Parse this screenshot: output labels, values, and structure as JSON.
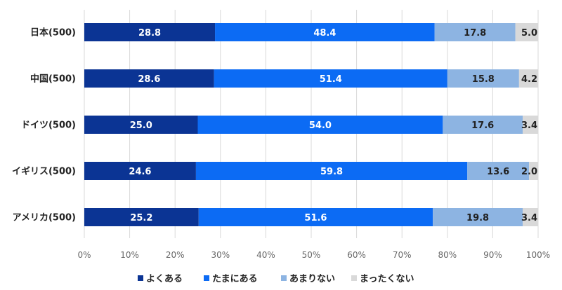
{
  "chart_data": {
    "type": "bar",
    "orientation": "horizontal",
    "stacked": true,
    "categories": [
      "日本(500)",
      "中国(500)",
      "ドイツ(500)",
      "イギリス(500)",
      "アメリカ(500)"
    ],
    "series": [
      {
        "name": "よくある",
        "color": "#0B3494",
        "label_color": "#ffffff",
        "values": [
          28.8,
          28.6,
          25.0,
          24.6,
          25.2
        ]
      },
      {
        "name": "たまにある",
        "color": "#0C6BF4",
        "label_color": "#ffffff",
        "values": [
          48.4,
          51.4,
          54.0,
          59.8,
          51.6
        ]
      },
      {
        "name": "あまりない",
        "color": "#8DB4E2",
        "label_color": "#222222",
        "values": [
          17.8,
          15.8,
          17.6,
          13.6,
          19.8
        ]
      },
      {
        "name": "まったくない",
        "color": "#D9D9D9",
        "label_color": "#222222",
        "values": [
          5.0,
          4.2,
          3.4,
          2.0,
          3.4
        ]
      }
    ],
    "x_ticks": [
      "0%",
      "10%",
      "20%",
      "30%",
      "40%",
      "50%",
      "60%",
      "70%",
      "80%",
      "90%",
      "100%"
    ],
    "xlim": [
      0,
      100
    ],
    "grid": true,
    "legend_position": "bottom"
  }
}
